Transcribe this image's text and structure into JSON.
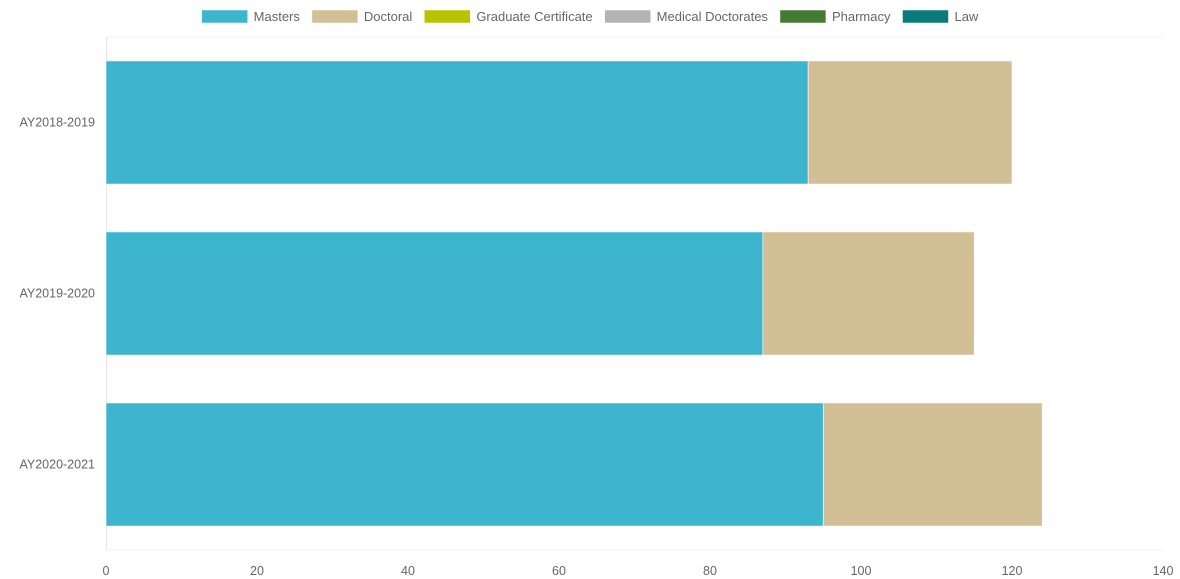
{
  "chart_data": {
    "type": "bar",
    "orientation": "horizontal",
    "stacked": true,
    "categories": [
      "AY2018-2019",
      "AY2019-2020",
      "AY2020-2021"
    ],
    "series": [
      {
        "name": "Masters",
        "color": "#3db5ce",
        "values": [
          93,
          87,
          95
        ]
      },
      {
        "name": "Doctoral",
        "color": "#d3bf96",
        "values": [
          27,
          28,
          29
        ]
      },
      {
        "name": "Graduate Certificate",
        "color": "#b8c400",
        "values": [
          0,
          0,
          0
        ]
      },
      {
        "name": "Medical Doctorates",
        "color": "#b3b3b3",
        "values": [
          0,
          0,
          0
        ]
      },
      {
        "name": "Pharmacy",
        "color": "#457a31",
        "values": [
          0,
          0,
          0
        ]
      },
      {
        "name": "Law",
        "color": "#0b7a7b",
        "values": [
          0,
          0,
          0
        ]
      }
    ],
    "xlim": [
      0,
      140
    ],
    "xticks": [
      0,
      20,
      40,
      60,
      80,
      100,
      120,
      140
    ],
    "title": "",
    "xlabel": "",
    "ylabel": "",
    "legend": "top",
    "grid": false
  }
}
